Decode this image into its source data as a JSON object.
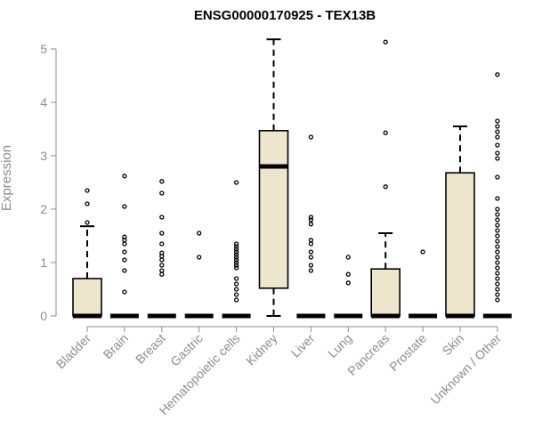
{
  "chart_data": {
    "type": "boxplot",
    "title": "ENSG00000170925 - TEX13B",
    "ylabel": "Expression",
    "xlabel": "",
    "ylim": [
      0,
      5.2
    ],
    "yticks": [
      0,
      1,
      2,
      3,
      4,
      5
    ],
    "grid": false,
    "colors": {
      "box_fill": "#ede6cc",
      "stroke": "#000000",
      "axis": "#8c8c8c"
    },
    "categories": [
      "Bladder",
      "Brain",
      "Breast",
      "Gastric",
      "Hematopoietic cells",
      "Kidney",
      "Liver",
      "Lung",
      "Pancreas",
      "Prostate",
      "Skin",
      "Unknown / Other"
    ],
    "boxes": [
      {
        "q1": 0,
        "median": 0,
        "q3": 0.7,
        "whisker_low": 0,
        "whisker_high": 1.68,
        "outliers": [
          1.75,
          2.1,
          2.35
        ]
      },
      {
        "q1": 0,
        "median": 0,
        "q3": 0,
        "whisker_low": 0,
        "whisker_high": 0,
        "outliers": [
          0.45,
          0.85,
          1.05,
          1.2,
          1.35,
          1.42,
          1.48,
          2.05,
          2.62
        ]
      },
      {
        "q1": 0,
        "median": 0,
        "q3": 0,
        "whisker_low": 0,
        "whisker_high": 0,
        "outliers": [
          0.78,
          0.85,
          0.95,
          1.05,
          1.12,
          1.18,
          1.35,
          1.55,
          1.85,
          2.3,
          2.52
        ]
      },
      {
        "q1": 0,
        "median": 0,
        "q3": 0,
        "whisker_low": 0,
        "whisker_high": 0,
        "outliers": [
          1.1,
          1.55
        ]
      },
      {
        "q1": 0,
        "median": 0,
        "q3": 0,
        "whisker_low": 0,
        "whisker_high": 0,
        "outliers": [
          0.3,
          0.4,
          0.5,
          0.6,
          0.7,
          0.9,
          0.95,
          1.0,
          1.05,
          1.1,
          1.15,
          1.2,
          1.25,
          1.3,
          1.35,
          2.5
        ]
      },
      {
        "q1": 0.52,
        "median": 2.8,
        "q3": 3.47,
        "whisker_low": 0,
        "whisker_high": 5.18,
        "outliers": []
      },
      {
        "q1": 0,
        "median": 0,
        "q3": 0,
        "whisker_low": 0,
        "whisker_high": 0,
        "outliers": [
          0.85,
          0.95,
          1.1,
          1.2,
          1.35,
          1.42,
          1.72,
          1.8,
          1.85,
          3.35
        ]
      },
      {
        "q1": 0,
        "median": 0,
        "q3": 0,
        "whisker_low": 0,
        "whisker_high": 0,
        "outliers": [
          0.62,
          0.78,
          1.1
        ]
      },
      {
        "q1": 0,
        "median": 0,
        "q3": 0.88,
        "whisker_low": 0,
        "whisker_high": 1.55,
        "outliers": [
          2.42,
          3.43,
          5.13
        ]
      },
      {
        "q1": 0,
        "median": 0,
        "q3": 0,
        "whisker_low": 0,
        "whisker_high": 0,
        "outliers": [
          1.2
        ]
      },
      {
        "q1": 0,
        "median": 0,
        "q3": 2.68,
        "whisker_low": 0,
        "whisker_high": 3.55,
        "outliers": []
      },
      {
        "q1": 0,
        "median": 0,
        "q3": 0,
        "whisker_low": 0,
        "whisker_high": 0,
        "outliers": [
          0.3,
          0.4,
          0.5,
          0.6,
          0.7,
          0.8,
          0.9,
          1.0,
          1.1,
          1.2,
          1.3,
          1.4,
          1.5,
          1.6,
          1.7,
          1.8,
          1.9,
          2.0,
          2.2,
          2.6,
          2.95,
          3.05,
          3.2,
          3.35,
          3.45,
          3.55,
          3.65,
          4.52
        ]
      }
    ]
  }
}
